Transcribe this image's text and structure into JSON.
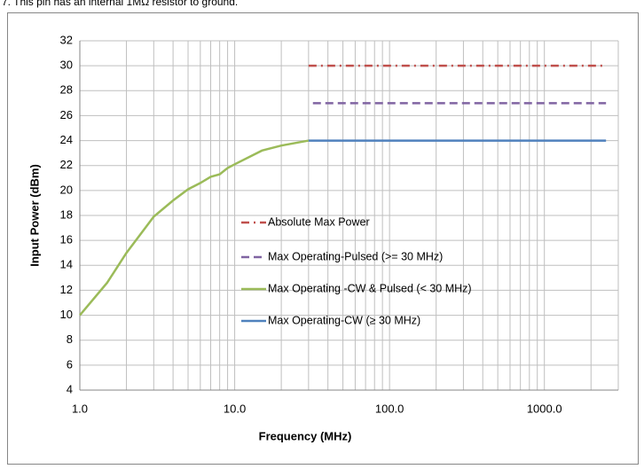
{
  "note": "7. This pin has an internal 1MΩ resistor to ground.",
  "chart_data": {
    "type": "line",
    "x_label": "Frequency (MHz)",
    "y_label": "Input Power (dBm)",
    "x_log": true,
    "grid": true,
    "xlim": [
      1,
      3000
    ],
    "xticks": [
      {
        "value": 1,
        "label": "1.0"
      },
      {
        "value": 10,
        "label": "10.0"
      },
      {
        "value": 100,
        "label": "100.0"
      },
      {
        "value": 1000,
        "label": "1000.0"
      }
    ],
    "x_minor_ticks": [
      2,
      3,
      4,
      5,
      6,
      7,
      8,
      9,
      20,
      30,
      40,
      50,
      60,
      70,
      80,
      90,
      200,
      300,
      400,
      500,
      600,
      700,
      800,
      900,
      2000,
      3000
    ],
    "ylim": [
      4,
      32
    ],
    "yticks": [
      4,
      6,
      8,
      10,
      12,
      14,
      16,
      18,
      20,
      22,
      24,
      26,
      28,
      30,
      32
    ],
    "series": [
      {
        "name": "Absolute Max Power",
        "color": "#c0504d",
        "dash": "dashdot",
        "x": [
          30,
          2500
        ],
        "values": [
          30,
          30
        ]
      },
      {
        "name": "Max Operating-Pulsed (>= 30 MHz)",
        "color": "#8064a2",
        "dash": "dash",
        "x": [
          32,
          2500
        ],
        "values": [
          27,
          27
        ]
      },
      {
        "name": "Max Operating -CW & Pulsed (< 30 MHz)",
        "color": "#9bbb59",
        "dash": "solid",
        "x": [
          1,
          1.5,
          2,
          3,
          4,
          5,
          6,
          7,
          8,
          9,
          10,
          15,
          20,
          30
        ],
        "values": [
          10,
          12.6,
          15,
          17.9,
          19.2,
          20.1,
          20.6,
          21.1,
          21.3,
          21.8,
          22.1,
          23.2,
          23.6,
          24
        ]
      },
      {
        "name": "Max Operating-CW (≥ 30 MHz)",
        "color": "#4f81bd",
        "dash": "solid",
        "x": [
          30,
          2500
        ],
        "values": [
          24,
          24
        ]
      }
    ]
  }
}
